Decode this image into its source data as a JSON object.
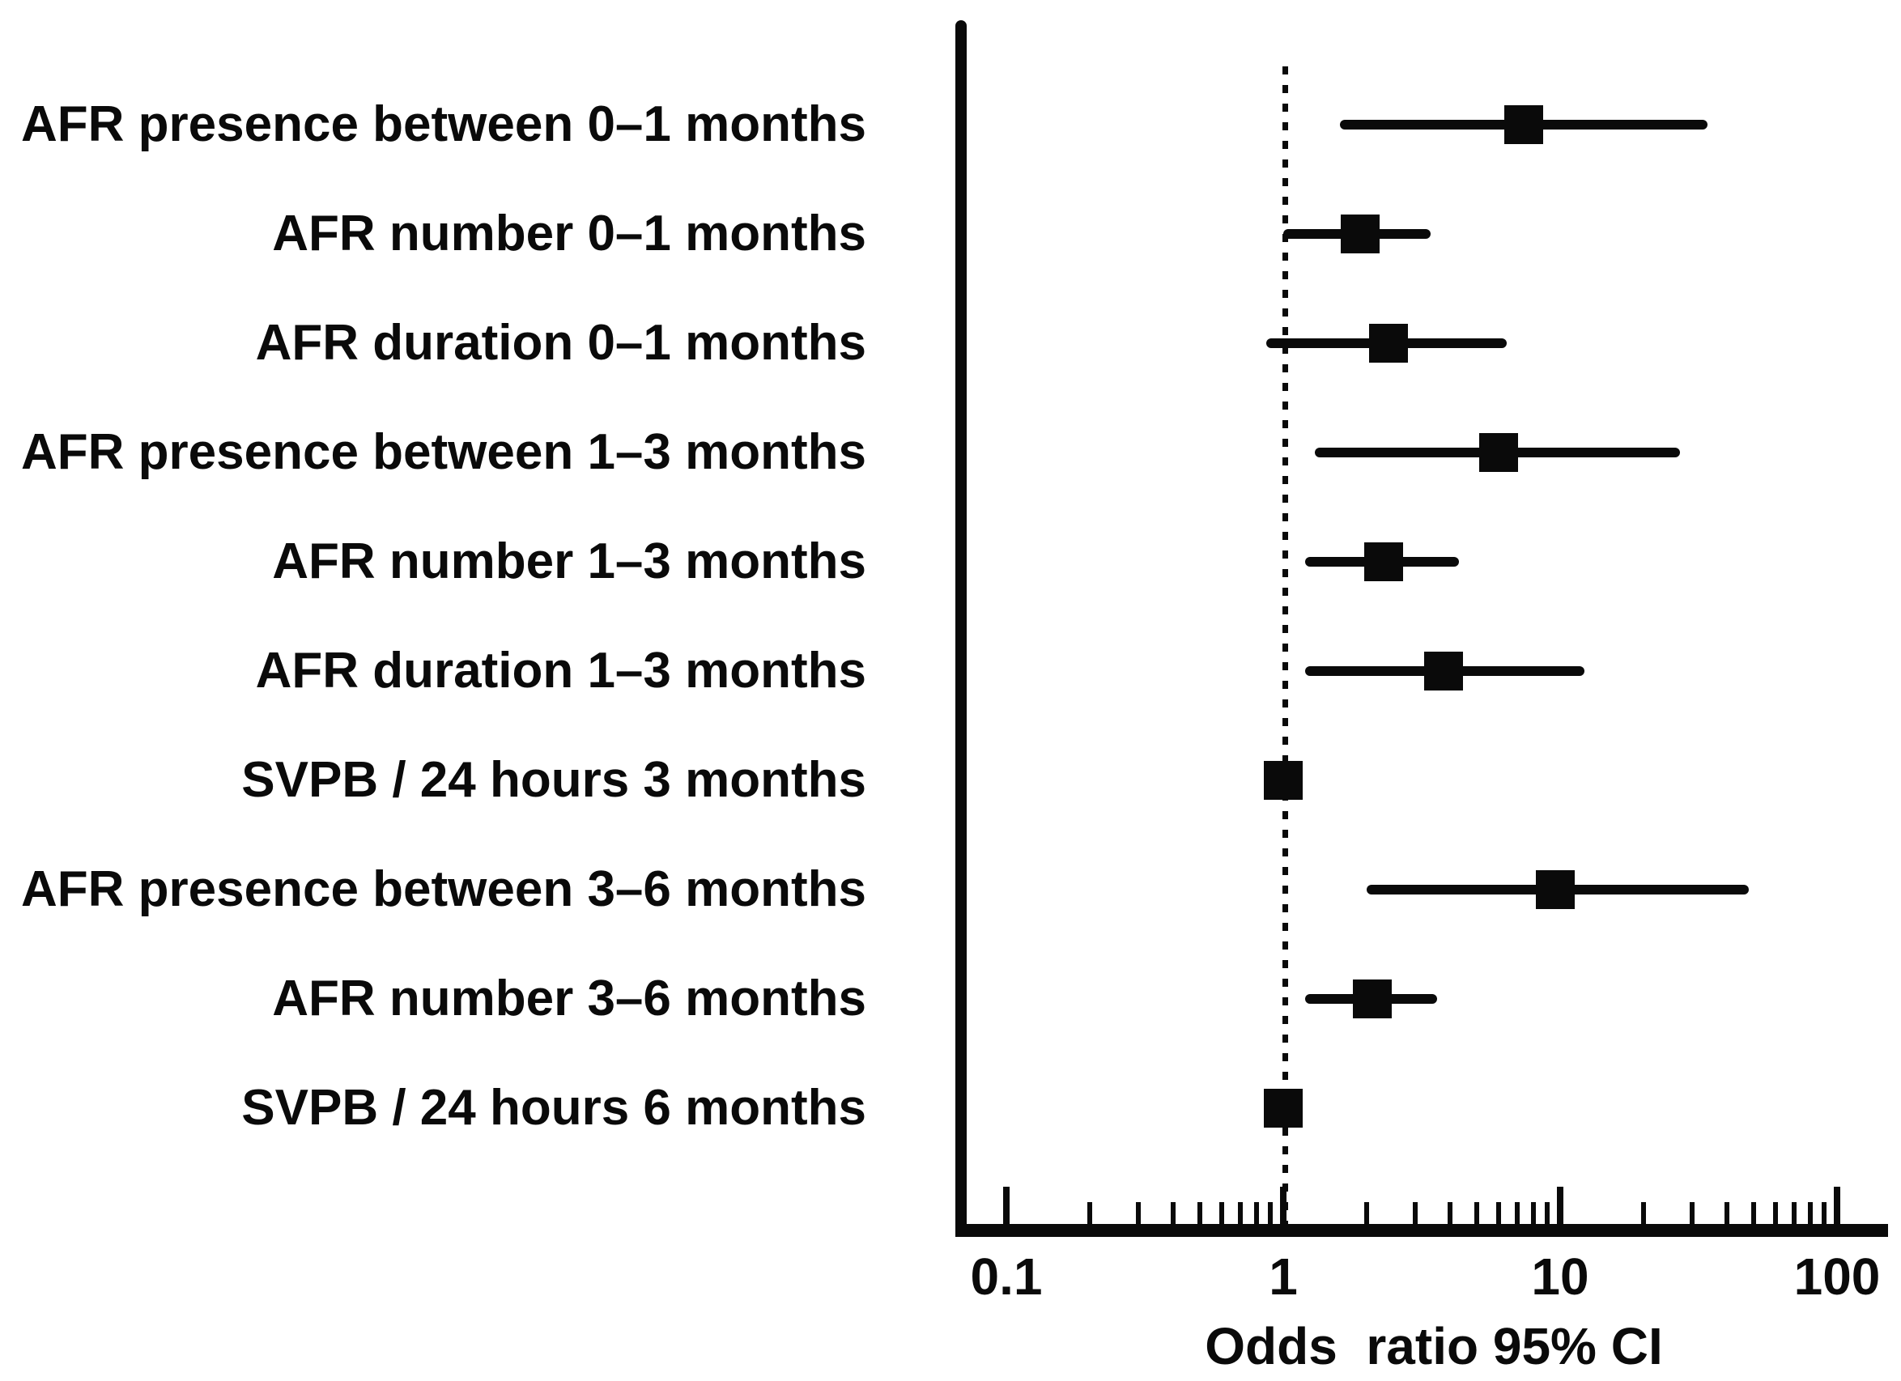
{
  "figure": {
    "kind": "forest plot",
    "background_color": "#ffffff",
    "ink_color": "#0a0a0a"
  },
  "chart_data": {
    "type": "scatter",
    "subtype": "forest-plot",
    "xlabel": "Odds  ratio 95% CI",
    "x_axis": {
      "scale": "log10",
      "range": [
        0.07,
        160
      ],
      "major_ticks": [
        0.1,
        1,
        10,
        100
      ],
      "major_tick_labels": [
        "0.1",
        "1",
        "10",
        "100"
      ],
      "minor_ticks": [
        0.2,
        0.3,
        0.4,
        0.5,
        0.6,
        0.7,
        0.8,
        0.9,
        2,
        3,
        4,
        5,
        6,
        7,
        8,
        9,
        20,
        30,
        40,
        50,
        60,
        70,
        80,
        90
      ],
      "reference_line_at": 1,
      "grid": false
    },
    "marker": "square",
    "rows": [
      {
        "label": "AFR presence between 0–1 months",
        "or": 7.4,
        "ci_low": 1.6,
        "ci_high": 34
      },
      {
        "label": "AFR number 0–1 months",
        "or": 1.9,
        "ci_low": 1.0,
        "ci_high": 3.4
      },
      {
        "label": "AFR duration 0–1 months",
        "or": 2.4,
        "ci_low": 0.87,
        "ci_high": 6.4
      },
      {
        "label": "AFR presence between 1–3 months",
        "or": 6.0,
        "ci_low": 1.3,
        "ci_high": 27
      },
      {
        "label": "AFR number 1–3 months",
        "or": 2.3,
        "ci_low": 1.2,
        "ci_high": 4.3
      },
      {
        "label": "AFR duration 1–3 months",
        "or": 3.8,
        "ci_low": 1.2,
        "ci_high": 12.2
      },
      {
        "label": "SVPB / 24 hours 3 months",
        "or": 1.0,
        "ci_low": 1.0,
        "ci_high": 1.0
      },
      {
        "label": "AFR presence between 3–6 months",
        "or": 9.6,
        "ci_low": 2.0,
        "ci_high": 48
      },
      {
        "label": "AFR number 3–6 months",
        "or": 2.1,
        "ci_low": 1.2,
        "ci_high": 3.6
      },
      {
        "label": "SVPB / 24 hours 6 months",
        "or": 1.0,
        "ci_low": 1.0,
        "ci_high": 1.0
      }
    ]
  }
}
